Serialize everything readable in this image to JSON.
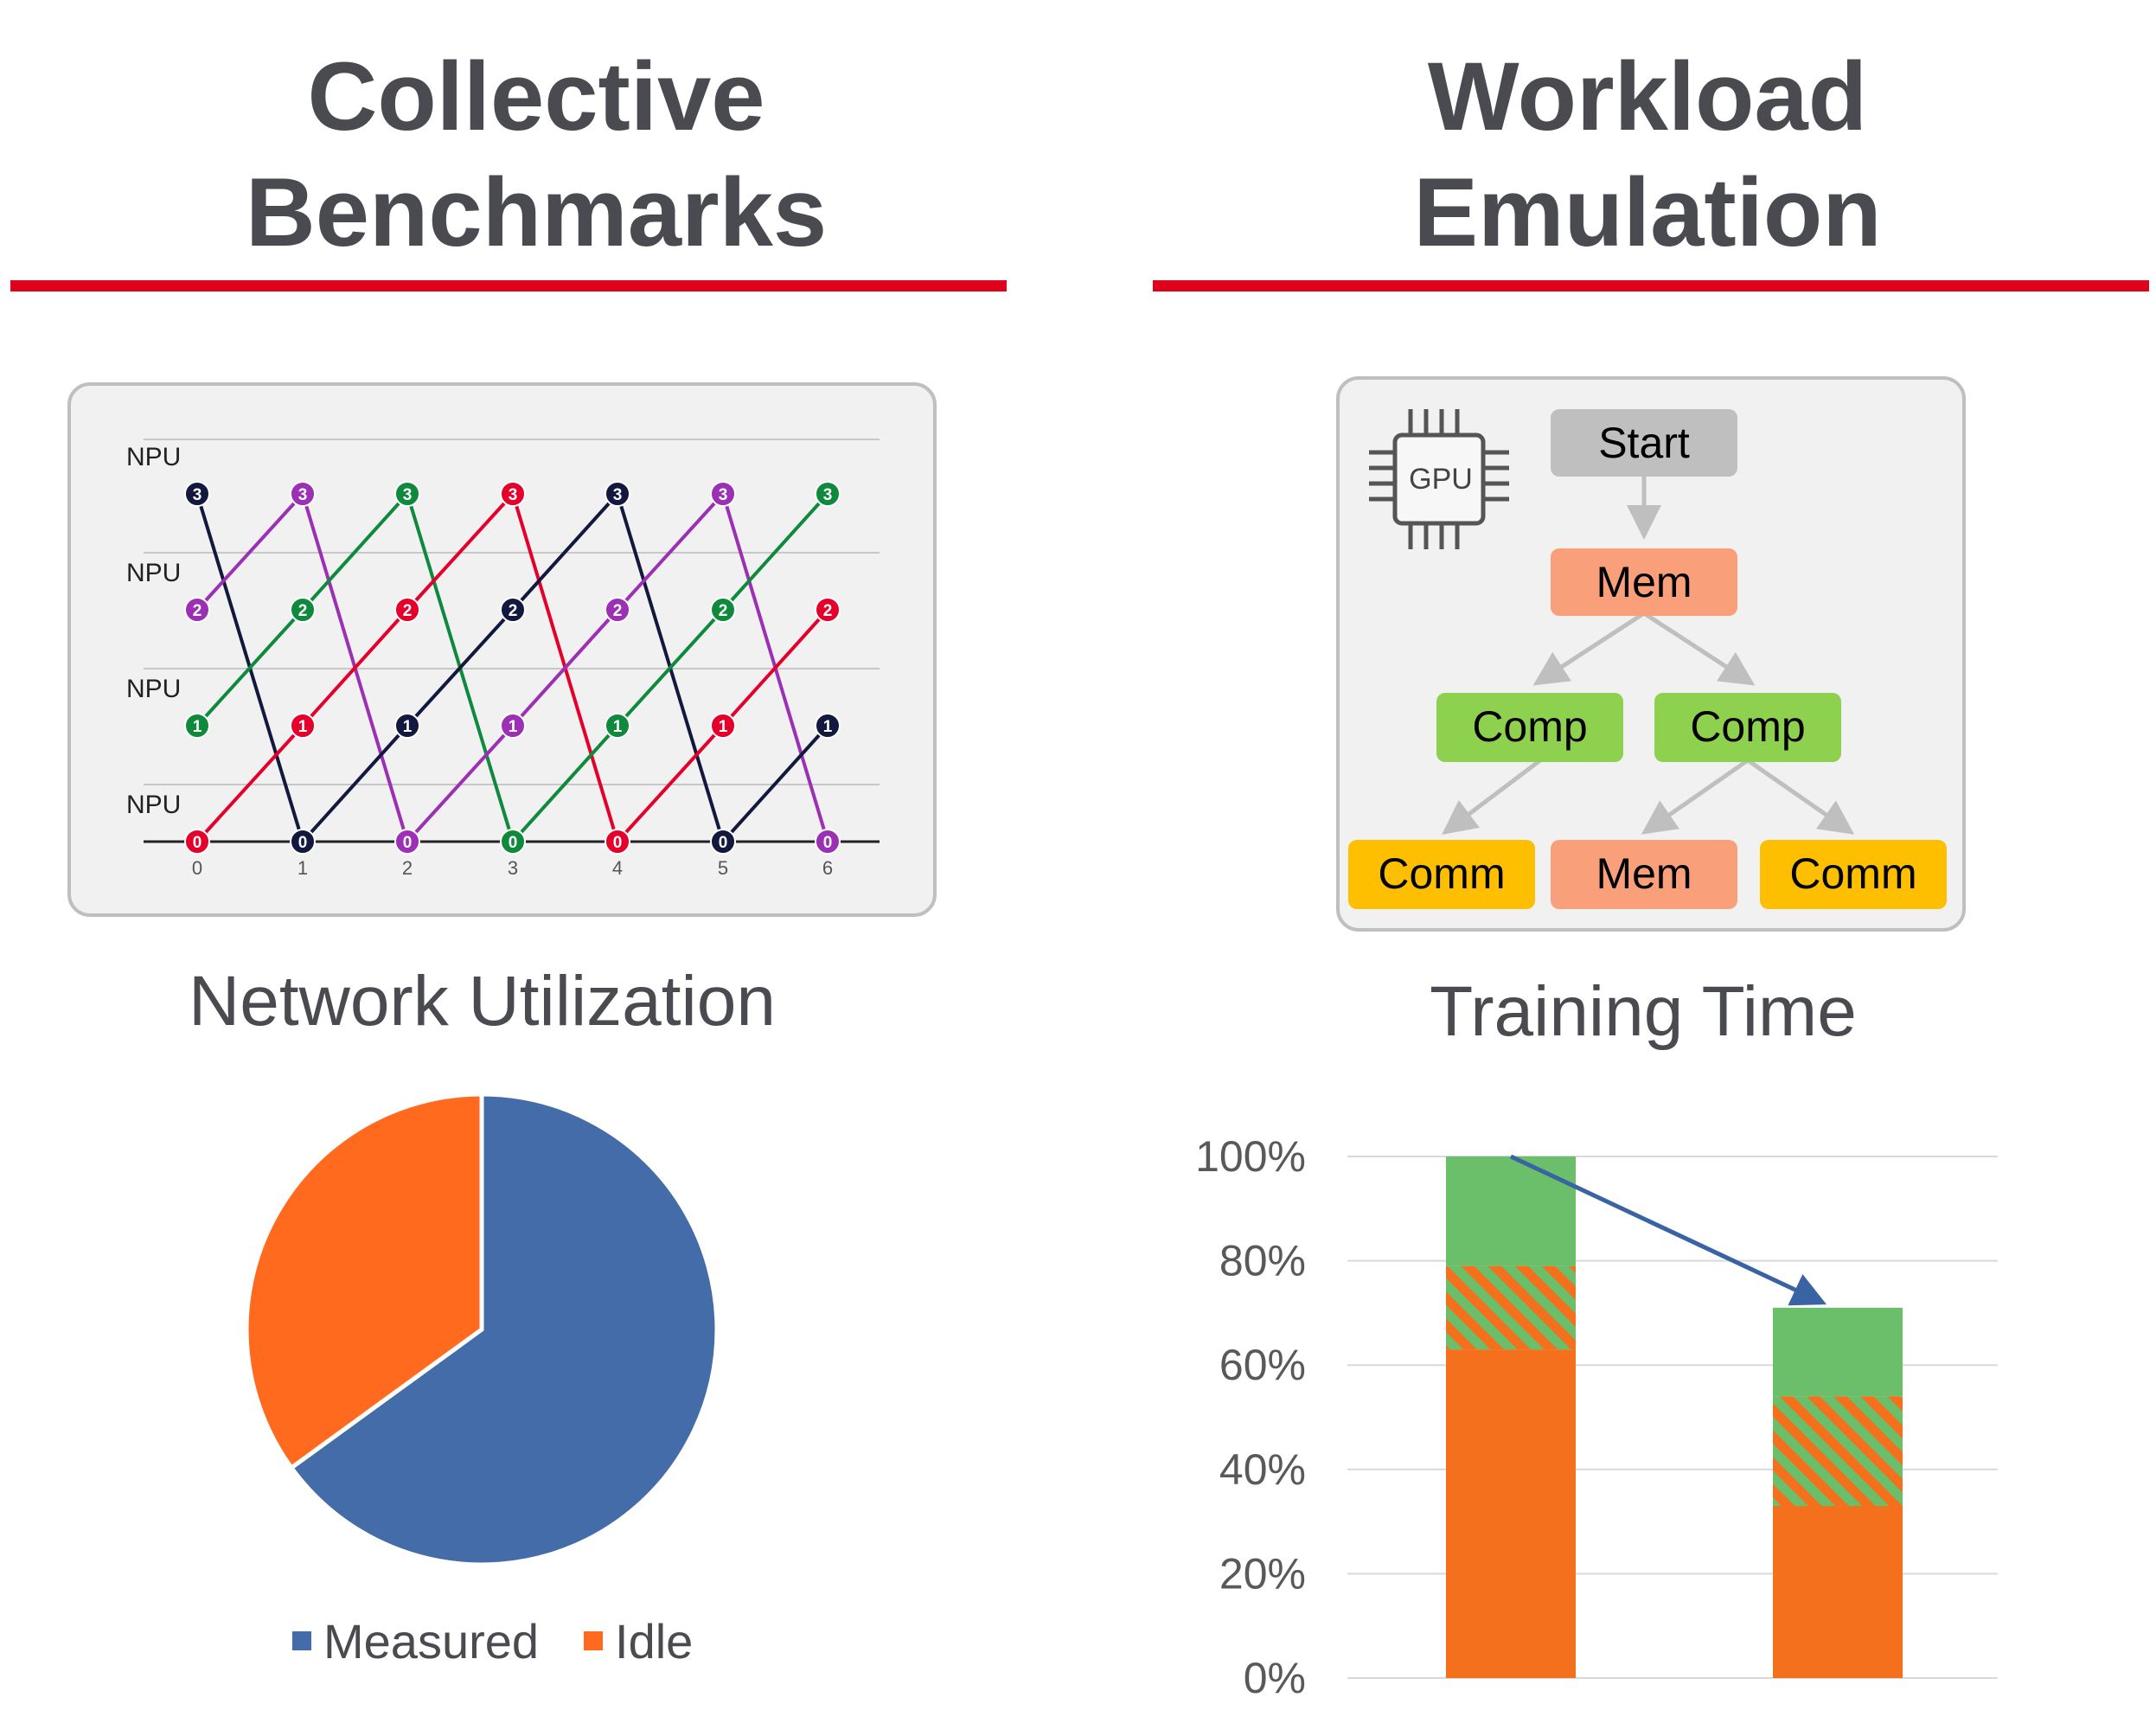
{
  "left": {
    "title_line1": "Collective",
    "title_line2": "Benchmarks",
    "ring": {
      "npu_label": "NPU",
      "steps": [
        "0",
        "1",
        "2",
        "3",
        "4",
        "5",
        "6"
      ],
      "colors": {
        "red": "#e4002b",
        "navy": "#13183e",
        "purple": "#9b30b4",
        "green": "#0f8a3d"
      },
      "rows": [
        [
          "3",
          "3",
          "3",
          "3",
          "3",
          "3",
          "3"
        ],
        [
          "2",
          "2",
          "2",
          "2",
          "2",
          "2",
          "2"
        ],
        [
          "1",
          "1",
          "1",
          "1",
          "1",
          "1",
          "1"
        ],
        [
          "0",
          "0",
          "0",
          "0",
          "0",
          "0",
          "0"
        ]
      ]
    },
    "pie_title": "Network Utilization",
    "chart_data": {
      "type": "pie",
      "labels": [
        "Measured",
        "Idle"
      ],
      "values": [
        65,
        35
      ],
      "colors": [
        "#436ca8",
        "#ff6a1f"
      ],
      "legend": "bottom"
    }
  },
  "right": {
    "title_line1": "Workload",
    "title_line2": "Emulation",
    "gpu_label": "GPU",
    "dag": {
      "start": "Start",
      "mem_top": "Mem",
      "comp_left": "Comp",
      "comp_right": "Comp",
      "comm_left": "Comm",
      "mem_bottom": "Mem",
      "comm_right": "Comm",
      "colors": {
        "start": "#bfbfbf",
        "mem": "#f9a07b",
        "comp": "#8ed14f",
        "comm": "#fdbf00"
      }
    },
    "bar_title": "Training Time",
    "chart_data": {
      "type": "bar",
      "stacked": true,
      "categories": [
        "",
        ""
      ],
      "series": [
        {
          "values": [
            63,
            33
          ],
          "color": "#f4701c"
        },
        {
          "values": [
            16,
            21
          ],
          "color": "#f4701c/#6bbf6a hatched"
        },
        {
          "values": [
            21,
            17
          ],
          "color": "#6bbf6a"
        }
      ],
      "y_ticks": [
        "0%",
        "20%",
        "40%",
        "60%",
        "80%",
        "100%"
      ],
      "ylim": [
        0,
        100
      ],
      "grid": true
    }
  }
}
